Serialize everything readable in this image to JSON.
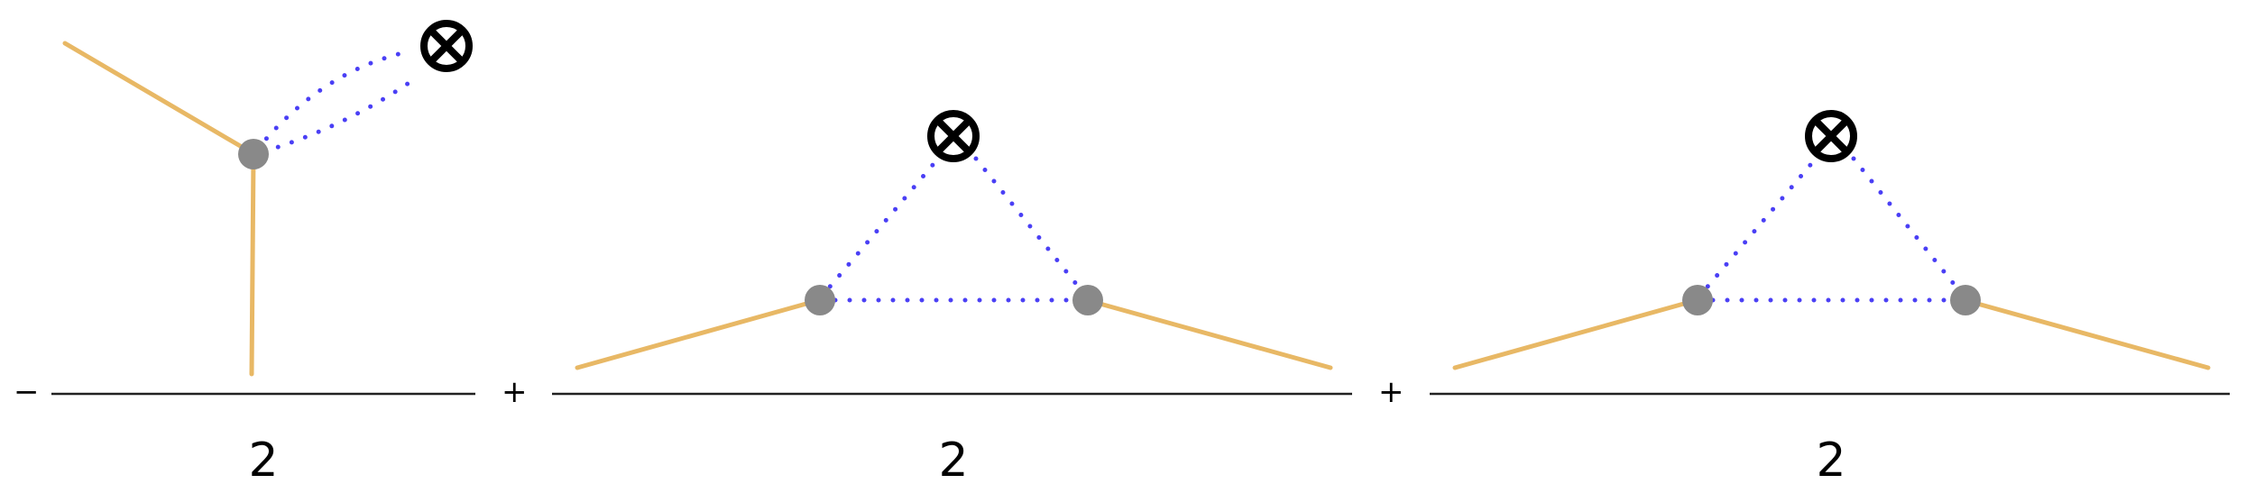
{
  "colors": {
    "solid_edge": "#e8b865",
    "dotted_edge": "#4a3ff5",
    "vertex": "#898989",
    "insertion": "#000000",
    "fraction_line": "#222222",
    "text": "#000000"
  },
  "icons": {
    "insertion": "circled-times-icon",
    "vertex": "filled-circle-icon"
  },
  "terms": [
    {
      "sign": "−",
      "denominator": "2"
    },
    {
      "sign": "+",
      "denominator": "2"
    },
    {
      "sign": "+",
      "denominator": "2"
    }
  ]
}
